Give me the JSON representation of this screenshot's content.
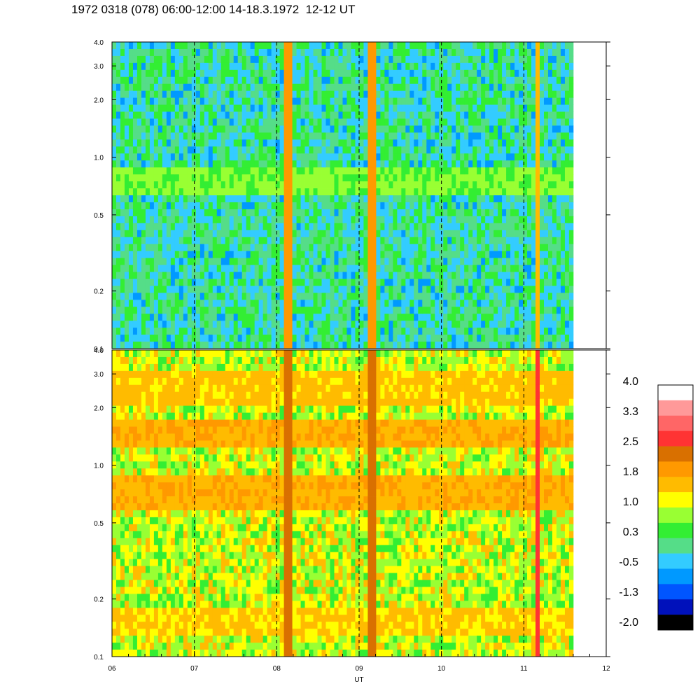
{
  "title": "1972 0318 (078) 06:00-12:00 14-18.3.1972  12-12 UT",
  "chart_data": [
    {
      "type": "heatmap",
      "panel": "top",
      "x_range": [
        6,
        12
      ],
      "data_x_range": [
        6,
        11.6
      ],
      "y_scale": "log",
      "y_range": [
        0.1,
        4.0
      ],
      "y_ticks": [
        "0.1",
        "0.2",
        "0.5",
        "1.0",
        "2.0",
        "3.0",
        "4.0"
      ],
      "y_tick_values": [
        0.1,
        0.2,
        0.5,
        1.0,
        2.0,
        3.0,
        4.0
      ],
      "hour_lines": [
        7,
        8,
        9,
        10,
        11
      ],
      "background_level": 0.0,
      "bands": [
        {
          "y": 0.75,
          "level": 0.7
        },
        {
          "y": 0.4,
          "level": -0.3
        }
      ],
      "spikes": [
        {
          "x": 8.13,
          "level": 2.0
        },
        {
          "x": 9.15,
          "level": 1.8
        },
        {
          "x": 11.17,
          "level": 1.5
        }
      ]
    },
    {
      "type": "heatmap",
      "panel": "bottom",
      "x_range": [
        6,
        12
      ],
      "data_x_range": [
        6,
        11.6
      ],
      "y_scale": "log",
      "y_range": [
        0.1,
        4.0
      ],
      "y_ticks": [
        "0.1",
        "0.2",
        "0.5",
        "1.0",
        "2.0",
        "3.0",
        "4.0"
      ],
      "y_tick_values": [
        0.1,
        0.2,
        0.5,
        1.0,
        2.0,
        3.0,
        4.0
      ],
      "x_ticks": [
        "06",
        "07",
        "08",
        "09",
        "10",
        "11",
        "12"
      ],
      "x_tick_values": [
        6,
        7,
        8,
        9,
        10,
        11,
        12
      ],
      "xlabel": "UT",
      "hour_lines": [
        7,
        8,
        9,
        10,
        11
      ],
      "background_level": 1.0,
      "bands": [
        {
          "y": 1.5,
          "level": 1.7
        },
        {
          "y": 0.72,
          "level": 1.7
        },
        {
          "y": 2.5,
          "level": 1.5
        },
        {
          "y": 0.15,
          "level": 1.4
        }
      ],
      "spikes": [
        {
          "x": 8.13,
          "level": 2.4
        },
        {
          "x": 9.15,
          "level": 2.4
        },
        {
          "x": 11.17,
          "level": 2.8
        }
      ]
    }
  ],
  "colorbar": {
    "labels": [
      "4.0",
      "3.3",
      "2.5",
      "1.8",
      "1.0",
      "0.3",
      "-0.5",
      "-1.3",
      "-2.0"
    ],
    "colors": [
      "#ffffff",
      "#ff9999",
      "#ff6666",
      "#ff3333",
      "#d97000",
      "#ff9900",
      "#ffbb00",
      "#ffff00",
      "#99ff33",
      "#33ee33",
      "#55dd88",
      "#33ccff",
      "#0099ff",
      "#0055ff",
      "#0011bb",
      "#000000"
    ]
  }
}
